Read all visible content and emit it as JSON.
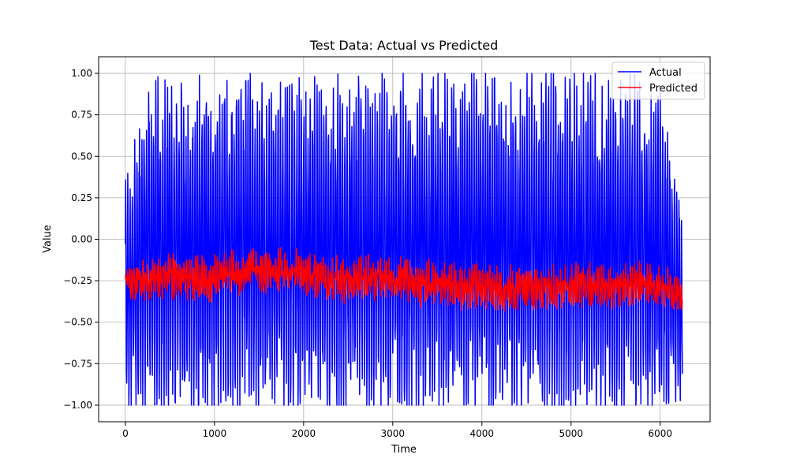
{
  "chart_data": {
    "type": "line",
    "title": "Test Data: Actual vs Predicted",
    "xlabel": "Time",
    "ylabel": "Value",
    "xlim": [
      -300,
      6560
    ],
    "ylim": [
      -1.1,
      1.1
    ],
    "x_ticks": [
      0,
      1000,
      2000,
      3000,
      4000,
      5000,
      6000
    ],
    "y_ticks": [
      1.0,
      0.75,
      0.5,
      0.25,
      0.0,
      -0.25,
      -0.5,
      -0.75,
      -1.0
    ],
    "x_tick_labels": [
      "0",
      "1000",
      "2000",
      "3000",
      "4000",
      "5000",
      "6000"
    ],
    "y_tick_labels": [
      "1.00",
      "0.75",
      "0.50",
      "0.25",
      "0.00",
      "−0.25",
      "−0.50",
      "−0.75",
      "−1.00"
    ],
    "grid": true,
    "legend_position": "top-right",
    "series": [
      {
        "name": "Actual",
        "color": "#0000ff",
        "x": [
          0,
          250,
          500,
          750,
          1000,
          1250,
          1500,
          1750,
          2000,
          2250,
          2500,
          2750,
          3000,
          3250,
          3500,
          3750,
          4000,
          4250,
          4500,
          4750,
          5000,
          5250,
          5500,
          5750,
          6000,
          6250
        ],
        "upper": [
          0.35,
          1.0,
          1.0,
          1.0,
          1.0,
          1.0,
          1.0,
          1.0,
          1.0,
          1.0,
          1.0,
          1.0,
          1.0,
          1.0,
          1.0,
          1.0,
          1.0,
          1.0,
          1.0,
          1.0,
          1.0,
          1.0,
          1.0,
          1.0,
          1.0,
          0.27
        ],
        "lower": [
          -1.0,
          -1.0,
          -1.0,
          -1.0,
          -1.0,
          -1.0,
          -1.0,
          -1.0,
          -1.0,
          -1.0,
          -1.0,
          -1.0,
          -1.0,
          -1.0,
          -1.0,
          -1.0,
          -1.0,
          -1.0,
          -1.0,
          -1.0,
          -1.0,
          -1.0,
          -1.0,
          -1.0,
          -1.0,
          -0.97
        ]
      },
      {
        "name": "Predicted",
        "color": "#ff0000",
        "x": [
          0,
          250,
          500,
          750,
          1000,
          1250,
          1500,
          1750,
          2000,
          2250,
          2500,
          2750,
          3000,
          3250,
          3500,
          3750,
          4000,
          4250,
          4500,
          4750,
          5000,
          5250,
          5500,
          5750,
          6000,
          6250
        ],
        "values": [
          -0.25,
          -0.24,
          -0.22,
          -0.24,
          -0.23,
          -0.2,
          -0.18,
          -0.19,
          -0.2,
          -0.24,
          -0.24,
          -0.23,
          -0.24,
          -0.27,
          -0.26,
          -0.28,
          -0.29,
          -0.3,
          -0.3,
          -0.28,
          -0.28,
          -0.27,
          -0.28,
          -0.26,
          -0.27,
          -0.36
        ],
        "upper": [
          -0.2,
          -0.08,
          -0.06,
          -0.05,
          -0.05,
          -0.05,
          -0.04,
          -0.05,
          -0.05,
          -0.06,
          -0.06,
          -0.07,
          -0.07,
          -0.05,
          -0.07,
          -0.06,
          -0.07,
          -0.09,
          -0.1,
          -0.08,
          -0.07,
          -0.05,
          -0.07,
          -0.06,
          -0.07,
          -0.25
        ],
        "lower": [
          -0.35,
          -0.38,
          -0.37,
          -0.38,
          -0.38,
          -0.37,
          -0.38,
          -0.37,
          -0.38,
          -0.4,
          -0.41,
          -0.43,
          -0.45,
          -0.44,
          -0.44,
          -0.45,
          -0.44,
          -0.44,
          -0.43,
          -0.42,
          -0.42,
          -0.42,
          -0.43,
          -0.43,
          -0.42,
          -0.42
        ]
      }
    ]
  }
}
